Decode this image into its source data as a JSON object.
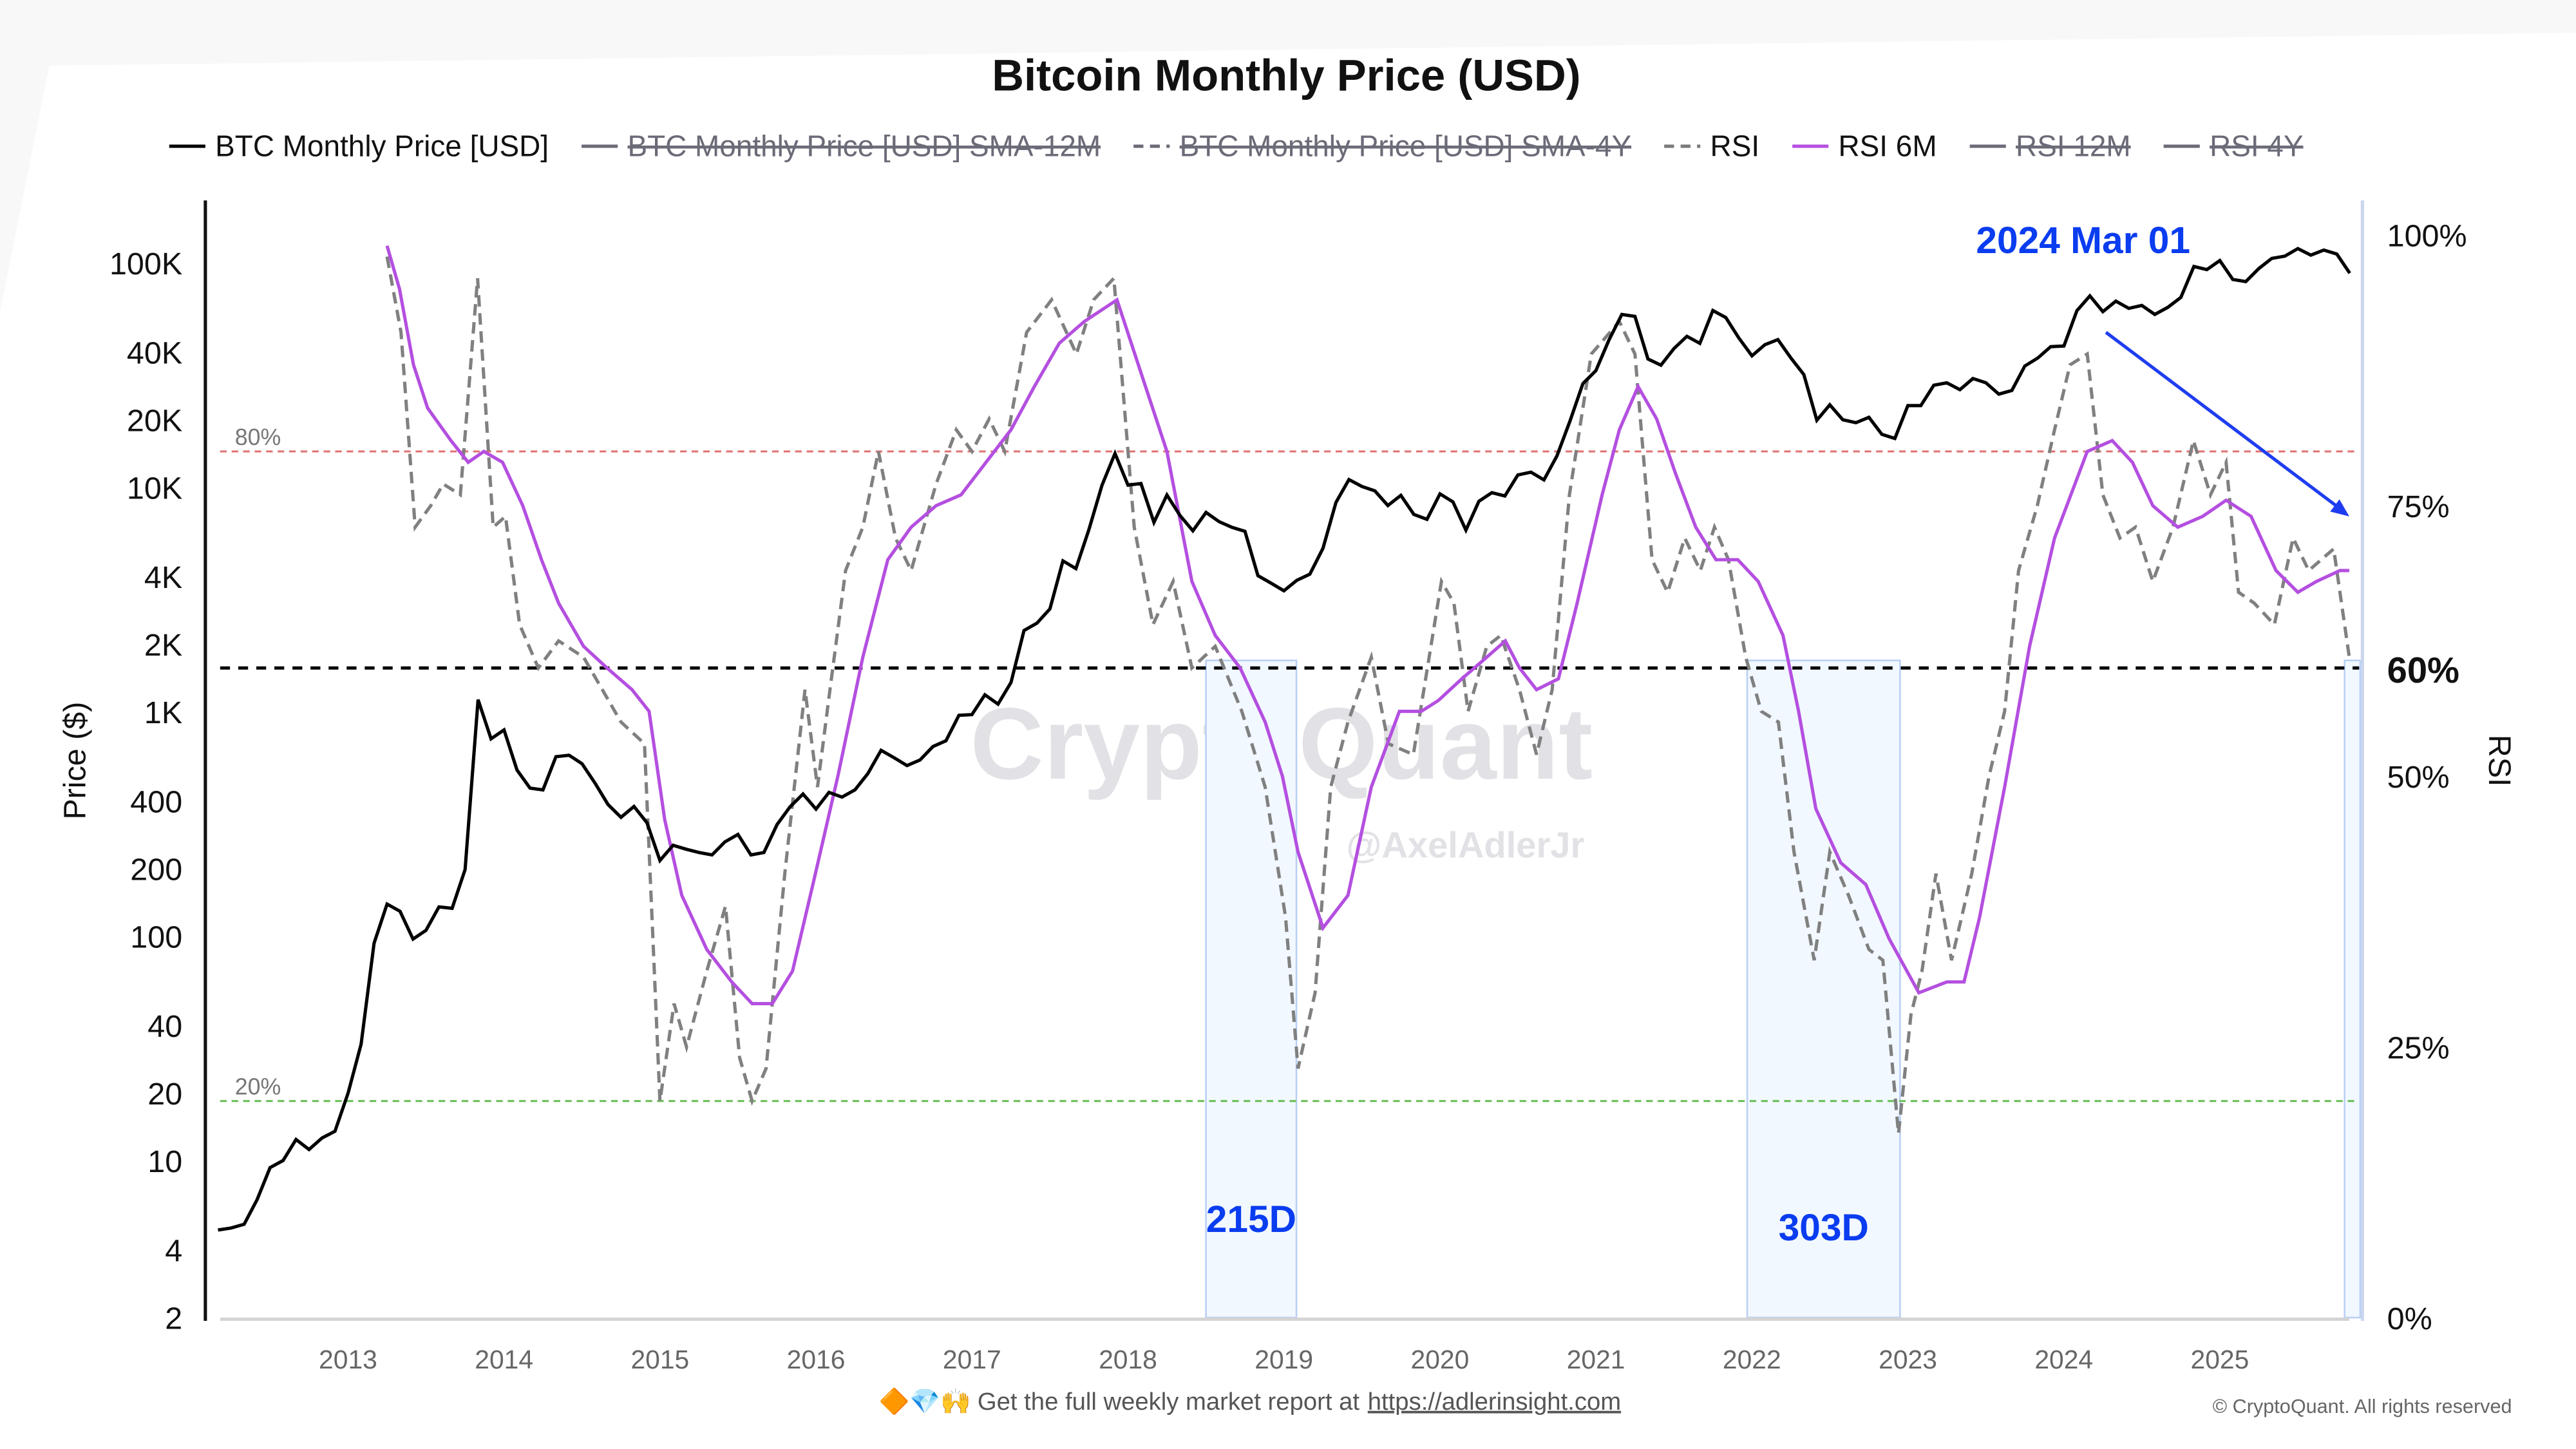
{
  "chart_data": {
    "type": "line",
    "title": "Bitcoin Monthly Price (USD)",
    "legend": {
      "placement": "top",
      "items": [
        {
          "label": "BTC Monthly Price [USD]",
          "color": "#000000",
          "style": "solid",
          "hidden": false
        },
        {
          "label": "BTC Monthly Price [USD] SMA-12M",
          "color": "#6b6b78",
          "style": "solid",
          "hidden": true
        },
        {
          "label": "BTC Monthly Price [USD] SMA-4Y",
          "color": "#6b6b78",
          "style": "dashed",
          "hidden": true
        },
        {
          "label": "RSI",
          "color": "#7a7a7a",
          "style": "dashed",
          "hidden": false
        },
        {
          "label": "RSI 6M",
          "color": "#b44fe0",
          "style": "solid",
          "hidden": false
        },
        {
          "label": "RSI 12M",
          "color": "#6b6b78",
          "style": "solid",
          "hidden": true
        },
        {
          "label": "RSI 4Y",
          "color": "#6b6b78",
          "style": "solid",
          "hidden": true
        }
      ]
    },
    "x_axis": {
      "ticks": [
        "2013",
        "2014",
        "2015",
        "2016",
        "2017",
        "2018",
        "2019",
        "2020",
        "2021",
        "2022",
        "2023",
        "2024",
        "2025"
      ],
      "range": [
        2012.18,
        2025.83
      ]
    },
    "y_left": {
      "label": "Price ($)",
      "scale": "log",
      "range": [
        2,
        100000
      ],
      "ticks": [
        {
          "v": 100000,
          "l": "100K"
        },
        {
          "v": 40000,
          "l": "40K"
        },
        {
          "v": 20000,
          "l": "20K"
        },
        {
          "v": 10000,
          "l": "10K"
        },
        {
          "v": 4000,
          "l": "4K"
        },
        {
          "v": 2000,
          "l": "2K"
        },
        {
          "v": 1000,
          "l": "1K"
        },
        {
          "v": 400,
          "l": "400"
        },
        {
          "v": 200,
          "l": "200"
        },
        {
          "v": 100,
          "l": "100"
        },
        {
          "v": 40,
          "l": "40"
        },
        {
          "v": 20,
          "l": "20"
        },
        {
          "v": 10,
          "l": "10"
        },
        {
          "v": 4,
          "l": "4"
        },
        {
          "v": 2,
          "l": "2"
        }
      ]
    },
    "y_right": {
      "label": "RSI",
      "range": [
        0,
        100
      ],
      "ticks": [
        {
          "v": 100,
          "l": "100%"
        },
        {
          "v": 75,
          "l": "75%"
        },
        {
          "v": 60,
          "l": "60%",
          "bold": true
        },
        {
          "v": 50,
          "l": "50%"
        },
        {
          "v": 25,
          "l": "25%"
        },
        {
          "v": 0,
          "l": "0%"
        }
      ]
    },
    "reference_lines": [
      {
        "value": 80,
        "label": "80%",
        "color": "#e07070"
      },
      {
        "value": 60,
        "label": "",
        "color": "#000000"
      },
      {
        "value": 20,
        "label": "20%",
        "color": "#6cbf5a"
      }
    ],
    "price_series": {
      "name": "BTC Monthly Price [USD]",
      "start": "2012-03",
      "values": [
        4.9,
        5,
        5.2,
        6.7,
        9.3,
        10,
        12.4,
        11.2,
        12.6,
        13.5,
        20,
        33,
        93,
        139,
        129,
        97,
        106,
        135,
        133,
        198,
        1130,
        757,
        830,
        550,
        457,
        448,
        630,
        640,
        586,
        480,
        386,
        338,
        378,
        320,
        217,
        254,
        244,
        236,
        230,
        263,
        284,
        230,
        236,
        314,
        377,
        430,
        368,
        437,
        416,
        448,
        531,
        673,
        624,
        575,
        609,
        700,
        742,
        963,
        970,
        1190,
        1080,
        1350,
        2300,
        2480,
        2875,
        4700,
        4340,
        6470,
        10230,
        14150,
        10220,
        10400,
        6970,
        9240,
        7490,
        6400,
        7730,
        7030,
        6630,
        6370,
        4040,
        3740,
        3460,
        3850,
        4100,
        5350,
        8570,
        10820,
        10080,
        9630,
        8300,
        9200,
        7570,
        7200,
        9350,
        8600,
        6440,
        8660,
        9460,
        9140,
        11350,
        11680,
        10780,
        13800,
        19700,
        28990,
        33100,
        45200,
        58900,
        57700,
        37300,
        35000,
        41500,
        47100,
        43800,
        61300,
        57000,
        46300,
        38500,
        43200,
        45500,
        37700,
        31800,
        19900,
        23300,
        20000,
        19400,
        20500,
        17200,
        16500,
        23100,
        23100,
        28500,
        29200,
        27200,
        30500,
        29200,
        26000,
        27000,
        34700,
        37700,
        42300,
        42600,
        61200,
        71300,
        60600,
        67500,
        62700,
        64600,
        58900,
        63300,
        70200,
        96400,
        93400,
        102400,
        84300,
        82500,
        94200,
        104600,
        107100,
        115700,
        108200,
        114000,
        109500,
        90000
      ]
    },
    "rsi_series": {
      "name": "RSI",
      "points": [
        [
          2013.25,
          98
        ],
        [
          2013.34,
          91
        ],
        [
          2013.43,
          73
        ],
        [
          2013.53,
          75
        ],
        [
          2013.61,
          77
        ],
        [
          2013.72,
          76
        ],
        [
          2013.83,
          96
        ],
        [
          2013.93,
          73
        ],
        [
          2014.01,
          74
        ],
        [
          2014.1,
          64
        ],
        [
          2014.22,
          60
        ],
        [
          2014.35,
          62.5
        ],
        [
          2014.51,
          61
        ],
        [
          2014.75,
          55
        ],
        [
          2014.9,
          53
        ],
        [
          2015.0,
          20
        ],
        [
          2015.09,
          29
        ],
        [
          2015.17,
          25
        ],
        [
          2015.3,
          32
        ],
        [
          2015.42,
          38
        ],
        [
          2015.51,
          24
        ],
        [
          2015.59,
          20
        ],
        [
          2015.68,
          23
        ],
        [
          2015.8,
          41
        ],
        [
          2015.93,
          58
        ],
        [
          2016.01,
          49
        ],
        [
          2016.09,
          58
        ],
        [
          2016.19,
          69
        ],
        [
          2016.3,
          73
        ],
        [
          2016.4,
          80
        ],
        [
          2016.51,
          72
        ],
        [
          2016.61,
          69
        ],
        [
          2016.77,
          77
        ],
        [
          2016.9,
          82
        ],
        [
          2017.0,
          80
        ],
        [
          2017.11,
          83
        ],
        [
          2017.21,
          80
        ],
        [
          2017.35,
          91
        ],
        [
          2017.51,
          94
        ],
        [
          2017.67,
          89
        ],
        [
          2017.78,
          94
        ],
        [
          2017.91,
          96
        ],
        [
          2018.04,
          73
        ],
        [
          2018.16,
          64
        ],
        [
          2018.29,
          68
        ],
        [
          2018.41,
          60
        ],
        [
          2018.56,
          62
        ],
        [
          2018.73,
          56
        ],
        [
          2018.88,
          49
        ],
        [
          2019.01,
          37
        ],
        [
          2019.09,
          23
        ],
        [
          2019.2,
          30
        ],
        [
          2019.3,
          49
        ],
        [
          2019.41,
          55
        ],
        [
          2019.56,
          61
        ],
        [
          2019.67,
          53
        ],
        [
          2019.83,
          52
        ],
        [
          2020.01,
          68
        ],
        [
          2020.09,
          66
        ],
        [
          2020.18,
          56
        ],
        [
          2020.3,
          62
        ],
        [
          2020.39,
          63
        ],
        [
          2020.51,
          58
        ],
        [
          2020.62,
          52
        ],
        [
          2020.72,
          58
        ],
        [
          2020.83,
          76
        ],
        [
          2020.97,
          89
        ],
        [
          2021.15,
          92
        ],
        [
          2021.25,
          89
        ],
        [
          2021.36,
          70
        ],
        [
          2021.46,
          67
        ],
        [
          2021.57,
          72
        ],
        [
          2021.67,
          69
        ],
        [
          2021.76,
          73
        ],
        [
          2021.85,
          70
        ],
        [
          2021.96,
          61
        ],
        [
          2022.06,
          56
        ],
        [
          2022.17,
          55
        ],
        [
          2022.27,
          43
        ],
        [
          2022.4,
          33
        ],
        [
          2022.5,
          43
        ],
        [
          2022.62,
          39
        ],
        [
          2022.75,
          34
        ],
        [
          2022.84,
          33
        ],
        [
          2022.94,
          17
        ],
        [
          2023.02,
          28
        ],
        [
          2023.09,
          32
        ],
        [
          2023.18,
          41
        ],
        [
          2023.28,
          33
        ],
        [
          2023.41,
          41
        ],
        [
          2023.52,
          50
        ],
        [
          2023.62,
          56
        ],
        [
          2023.71,
          69
        ],
        [
          2023.83,
          75
        ],
        [
          2023.94,
          82
        ],
        [
          2024.04,
          88
        ],
        [
          2024.15,
          89
        ],
        [
          2024.25,
          76
        ],
        [
          2024.36,
          72
        ],
        [
          2024.46,
          73
        ],
        [
          2024.57,
          68
        ],
        [
          2024.7,
          73
        ],
        [
          2024.83,
          81
        ],
        [
          2024.94,
          76
        ],
        [
          2025.04,
          79
        ],
        [
          2025.12,
          67
        ],
        [
          2025.22,
          66
        ],
        [
          2025.35,
          64
        ],
        [
          2025.47,
          72
        ],
        [
          2025.57,
          69
        ],
        [
          2025.73,
          71
        ],
        [
          2025.83,
          61
        ]
      ]
    },
    "rsi6m_series": {
      "name": "RSI 6M",
      "points": [
        [
          2013.25,
          99
        ],
        [
          2013.33,
          95
        ],
        [
          2013.42,
          88
        ],
        [
          2013.51,
          84
        ],
        [
          2013.66,
          81
        ],
        [
          2013.77,
          79
        ],
        [
          2013.87,
          80
        ],
        [
          2013.99,
          79
        ],
        [
          2014.12,
          75
        ],
        [
          2014.24,
          70
        ],
        [
          2014.35,
          66
        ],
        [
          2014.51,
          62
        ],
        [
          2014.66,
          60
        ],
        [
          2014.82,
          58
        ],
        [
          2014.93,
          56
        ],
        [
          2015.03,
          46
        ],
        [
          2015.14,
          39
        ],
        [
          2015.3,
          34
        ],
        [
          2015.46,
          31
        ],
        [
          2015.59,
          29
        ],
        [
          2015.72,
          29
        ],
        [
          2015.85,
          32
        ],
        [
          2015.98,
          40
        ],
        [
          2016.14,
          50
        ],
        [
          2016.3,
          61
        ],
        [
          2016.46,
          70
        ],
        [
          2016.61,
          73
        ],
        [
          2016.77,
          75
        ],
        [
          2016.93,
          76
        ],
        [
          2017.09,
          79
        ],
        [
          2017.25,
          82
        ],
        [
          2017.4,
          86
        ],
        [
          2017.56,
          90
        ],
        [
          2017.72,
          92
        ],
        [
          2017.93,
          94
        ],
        [
          2018.09,
          87
        ],
        [
          2018.25,
          80
        ],
        [
          2018.41,
          68
        ],
        [
          2018.56,
          63
        ],
        [
          2018.72,
          60
        ],
        [
          2018.88,
          55
        ],
        [
          2018.99,
          50
        ],
        [
          2019.09,
          43
        ],
        [
          2019.25,
          36
        ],
        [
          2019.41,
          39
        ],
        [
          2019.56,
          49
        ],
        [
          2019.74,
          56
        ],
        [
          2019.88,
          56
        ],
        [
          2019.99,
          57
        ],
        [
          2020.14,
          59
        ],
        [
          2020.3,
          61
        ],
        [
          2020.42,
          62.5
        ],
        [
          2020.51,
          60
        ],
        [
          2020.62,
          58
        ],
        [
          2020.76,
          59
        ],
        [
          2020.88,
          66
        ],
        [
          2021.04,
          76
        ],
        [
          2021.15,
          82
        ],
        [
          2021.27,
          86
        ],
        [
          2021.39,
          83
        ],
        [
          2021.51,
          78
        ],
        [
          2021.64,
          73
        ],
        [
          2021.77,
          70
        ],
        [
          2021.91,
          70
        ],
        [
          2022.04,
          68
        ],
        [
          2022.2,
          63
        ],
        [
          2022.3,
          56
        ],
        [
          2022.41,
          47
        ],
        [
          2022.57,
          42
        ],
        [
          2022.73,
          40
        ],
        [
          2022.88,
          35
        ],
        [
          2023.07,
          30
        ],
        [
          2023.25,
          31
        ],
        [
          2023.36,
          31
        ],
        [
          2023.46,
          37
        ],
        [
          2023.62,
          49
        ],
        [
          2023.78,
          62
        ],
        [
          2023.94,
          72
        ],
        [
          2024.15,
          80
        ],
        [
          2024.31,
          81
        ],
        [
          2024.44,
          79
        ],
        [
          2024.57,
          75
        ],
        [
          2024.73,
          73
        ],
        [
          2024.89,
          74
        ],
        [
          2025.04,
          75.5
        ],
        [
          2025.2,
          74
        ],
        [
          2025.36,
          69
        ],
        [
          2025.5,
          67
        ],
        [
          2025.62,
          68
        ],
        [
          2025.77,
          69
        ],
        [
          2025.83,
          69
        ]
      ]
    },
    "highlight_periods": [
      {
        "from": 2018.5,
        "to": 2019.08,
        "label": "215D"
      },
      {
        "from": 2021.97,
        "to": 2022.95,
        "label": "303D"
      },
      {
        "from": 2025.8,
        "to": 2025.9,
        "label": ""
      }
    ],
    "annotations": [
      {
        "text": "2024 Mar 01",
        "color": "#0a3cf0"
      }
    ],
    "arrow": {
      "from": [
        2024.27,
        91
      ],
      "to": [
        2025.83,
        74
      ],
      "color": "#1f3df0"
    },
    "watermark": [
      "CryptoQuant",
      "@AxelAdlerJr"
    ],
    "grid": false
  },
  "footer": {
    "emoji": "🔶💎🙌",
    "text": "Get the full weekly market report at",
    "link": "https://adlerinsight.com",
    "copyright": "© CryptoQuant. All rights reserved"
  }
}
